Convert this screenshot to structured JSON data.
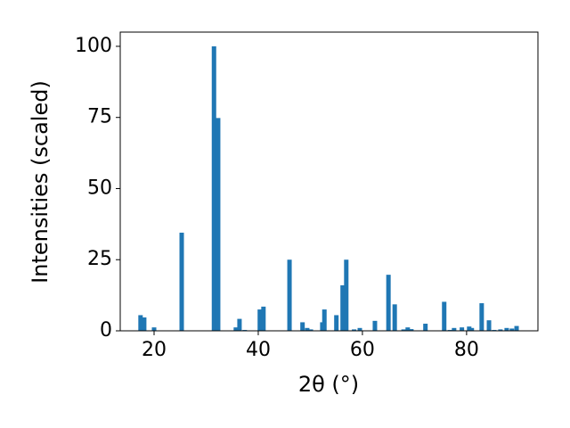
{
  "chart_data": {
    "type": "bar",
    "x_label": "2θ (°)",
    "y_label": "Intensities (scaled)",
    "x": [
      17.4,
      18.1,
      20.0,
      25.3,
      31.5,
      32.3,
      35.7,
      36.4,
      37.4,
      40.3,
      41.0,
      46.0,
      48.5,
      49.4,
      50.1,
      52.3,
      52.7,
      55.0,
      56.2,
      56.9,
      58.4,
      59.5,
      62.4,
      65.0,
      66.2,
      67.9,
      68.7,
      69.4,
      72.1,
      75.7,
      76.8,
      77.6,
      79.1,
      80.5,
      81.0,
      82.9,
      84.3,
      85.3,
      86.5,
      87.7,
      88.7,
      89.6
    ],
    "values": [
      5.5,
      4.7,
      1.2,
      34.5,
      100,
      74.8,
      1.2,
      4.2,
      0.3,
      7.5,
      8.5,
      25,
      3.0,
      1,
      0.5,
      3,
      7.5,
      5.5,
      16,
      25,
      0.5,
      1,
      3.5,
      19.7,
      9.3,
      0.5,
      1.2,
      0.6,
      2.5,
      10.2,
      0.3,
      1,
      1.2,
      1.5,
      1,
      9.7,
      3.7,
      0.3,
      0.5,
      1,
      0.8,
      1.7
    ],
    "color": "#1f77b4",
    "xlim": [
      13.5,
      93.7
    ],
    "xticks": [
      20,
      40,
      60,
      80
    ],
    "ylim": [
      0,
      105
    ],
    "yticks": [
      0,
      25,
      50,
      75,
      100
    ]
  }
}
